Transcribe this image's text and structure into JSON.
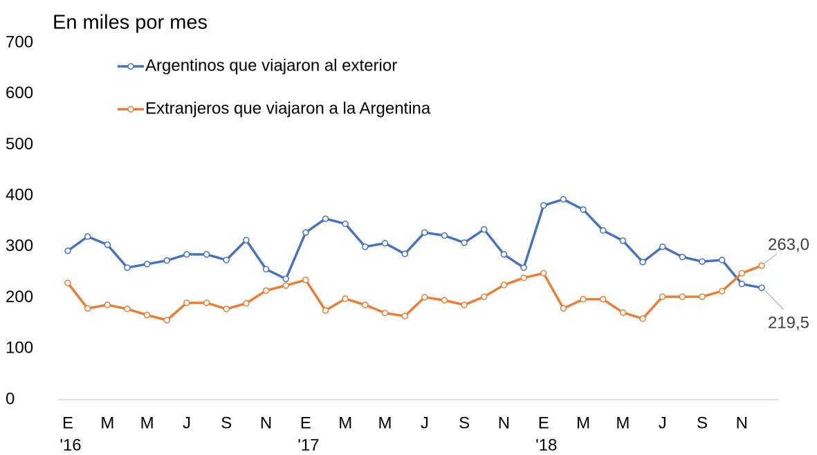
{
  "chart_data": {
    "type": "line",
    "subtitle": "En miles por mes",
    "categories": [
      "E",
      null,
      "M",
      null,
      "M",
      null,
      "J",
      null,
      "S",
      null,
      "N",
      null,
      "E",
      null,
      "M",
      null,
      "M",
      null,
      "J",
      null,
      "S",
      null,
      "N",
      null,
      "E",
      null,
      "M",
      null,
      "M",
      null,
      "J",
      null,
      "S",
      null,
      "N",
      null
    ],
    "years": [
      "'16",
      null,
      null,
      null,
      null,
      null,
      null,
      null,
      null,
      null,
      null,
      null,
      "'17",
      null,
      null,
      null,
      null,
      null,
      null,
      null,
      null,
      null,
      null,
      null,
      "'18",
      null,
      null,
      null,
      null,
      null,
      null,
      null,
      null,
      null,
      null,
      null
    ],
    "series": [
      {
        "name": "Argentinos que viajaron al exterior",
        "color": "#4472c4",
        "values": [
          292,
          320,
          304,
          259,
          266,
          273,
          285,
          285,
          274,
          313,
          256,
          237,
          328,
          355,
          345,
          300,
          307,
          286,
          328,
          322,
          308,
          334,
          285,
          259,
          381,
          393,
          373,
          332,
          312,
          270,
          300,
          280,
          271,
          274,
          227,
          219.5
        ],
        "value_labels": [
          null,
          null,
          null,
          null,
          null,
          null,
          null,
          null,
          null,
          null,
          null,
          null,
          null,
          null,
          null,
          null,
          null,
          null,
          null,
          null,
          null,
          null,
          null,
          null,
          null,
          null,
          null,
          null,
          null,
          null,
          null,
          null,
          null,
          null,
          null,
          "219,5"
        ]
      },
      {
        "name": "Extranjeros que viajaron a la Argentina",
        "color": "#ed7d31",
        "values": [
          229,
          179,
          186,
          178,
          166,
          156,
          190,
          190,
          178,
          189,
          214,
          224,
          235,
          175,
          198,
          186,
          170,
          164,
          201,
          195,
          186,
          202,
          225,
          239,
          248,
          179,
          197,
          197,
          171,
          159,
          202,
          202,
          202,
          213,
          248,
          263.0
        ],
        "value_labels": [
          null,
          null,
          null,
          null,
          null,
          null,
          null,
          null,
          null,
          null,
          null,
          null,
          null,
          null,
          null,
          null,
          null,
          null,
          null,
          null,
          null,
          null,
          null,
          null,
          null,
          null,
          null,
          null,
          null,
          null,
          null,
          null,
          null,
          null,
          null,
          "263,0"
        ]
      }
    ],
    "ylim": [
      0,
      700
    ],
    "yticks": [
      0,
      100,
      200,
      300,
      400,
      500,
      600,
      700
    ],
    "grid": false,
    "legend": "upper left"
  }
}
